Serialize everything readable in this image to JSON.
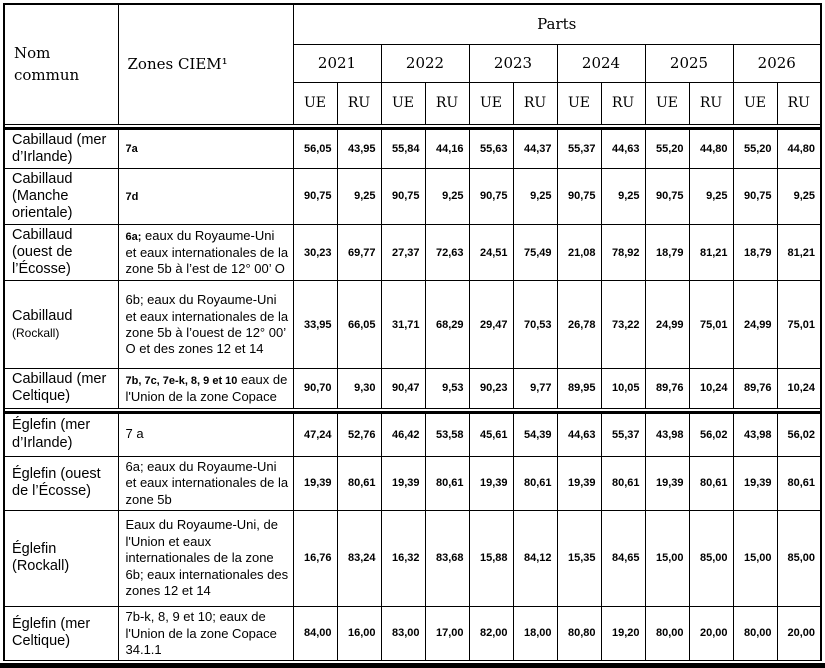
{
  "table": {
    "header": {
      "name_label": "Nom commun",
      "zone_label": "Zones CIEM¹",
      "parts_label": "Parts",
      "years": [
        "2021",
        "2022",
        "2023",
        "2024",
        "2025",
        "2026"
      ],
      "ue_label": "UE",
      "ru_label": "RU"
    },
    "rows": [
      {
        "name": "Cabillaud (mer d’Irlande)",
        "name_small": "",
        "zone_small": "7a",
        "zone": "",
        "values": [
          "56,05",
          "43,95",
          "55,84",
          "44,16",
          "55,63",
          "44,37",
          "55,37",
          "44,63",
          "55,20",
          "44,80",
          "55,20",
          "44,80"
        ],
        "group_end": false
      },
      {
        "name": "Cabillaud (Manche orientale)",
        "name_small": "",
        "zone_small": "7d",
        "zone": "",
        "values": [
          "90,75",
          "9,25",
          "90,75",
          "9,25",
          "90,75",
          "9,25",
          "90,75",
          "9,25",
          "90,75",
          "9,25",
          "90,75",
          "9,25"
        ],
        "group_end": false
      },
      {
        "name": "Cabillaud (ouest de l’Écosse)",
        "name_small": "",
        "zone_small": "6a;",
        "zone": "eaux du Royaume-Uni et eaux internationales de la zone 5b à l’est de 12° 00’ O",
        "values": [
          "30,23",
          "69,77",
          "27,37",
          "72,63",
          "24,51",
          "75,49",
          "21,08",
          "78,92",
          "18,79",
          "81,21",
          "18,79",
          "81,21"
        ],
        "group_end": false
      },
      {
        "name": "Cabillaud",
        "name_small": "(Rockall)",
        "zone_small": "",
        "zone": "6b; eaux du Royaume-Uni et eaux internationales de la zone 5b à l’ouest de 12° 00’ O et des zones 12 et 14",
        "values": [
          "33,95",
          "66,05",
          "31,71",
          "68,29",
          "29,47",
          "70,53",
          "26,78",
          "73,22",
          "24,99",
          "75,01",
          "24,99",
          "75,01"
        ],
        "group_end": false
      },
      {
        "name": "Cabillaud (mer Celtique)",
        "name_small": "",
        "zone_small": "7b, 7c, 7e-k, 8, 9 et 10",
        "zone": "eaux de l'Union de la zone Copace",
        "values": [
          "90,70",
          "9,30",
          "90,47",
          "9,53",
          "90,23",
          "9,77",
          "89,95",
          "10,05",
          "89,76",
          "10,24",
          "89,76",
          "10,24"
        ],
        "group_end": true
      },
      {
        "name": "Églefin (mer d’Irlande)",
        "name_small": "",
        "zone_small": "",
        "zone": "7 a",
        "values": [
          "47,24",
          "52,76",
          "46,42",
          "53,58",
          "45,61",
          "54,39",
          "44,63",
          "55,37",
          "43,98",
          "56,02",
          "43,98",
          "56,02"
        ],
        "group_end": false
      },
      {
        "name": "Églefin (ouest de l’Écosse)",
        "name_small": "",
        "zone_small": "",
        "zone": "6a; eaux du Royaume-Uni et eaux internationales de la zone 5b",
        "values": [
          "19,39",
          "80,61",
          "19,39",
          "80,61",
          "19,39",
          "80,61",
          "19,39",
          "80,61",
          "19,39",
          "80,61",
          "19,39",
          "80,61"
        ],
        "group_end": false
      },
      {
        "name": "Églefin (Rockall)",
        "name_small": "",
        "zone_small": "",
        "zone": "Eaux du Royaume-Uni, de l'Union et eaux internationales de la zone 6b; eaux internationales des zones 12 et 14",
        "values": [
          "16,76",
          "83,24",
          "16,32",
          "83,68",
          "15,88",
          "84,12",
          "15,35",
          "84,65",
          "15,00",
          "85,00",
          "15,00",
          "85,00"
        ],
        "group_end": false
      },
      {
        "name": "Églefin (mer Celtique)",
        "name_small": "",
        "zone_small": "",
        "zone": "7b-k, 8, 9 et 10; eaux de l'Union de la zone Copace 34.1.1",
        "values": [
          "84,00",
          "16,00",
          "83,00",
          "17,00",
          "82,00",
          "18,00",
          "80,80",
          "19,20",
          "80,00",
          "20,00",
          "80,00",
          "20,00"
        ],
        "group_end": false
      }
    ]
  }
}
